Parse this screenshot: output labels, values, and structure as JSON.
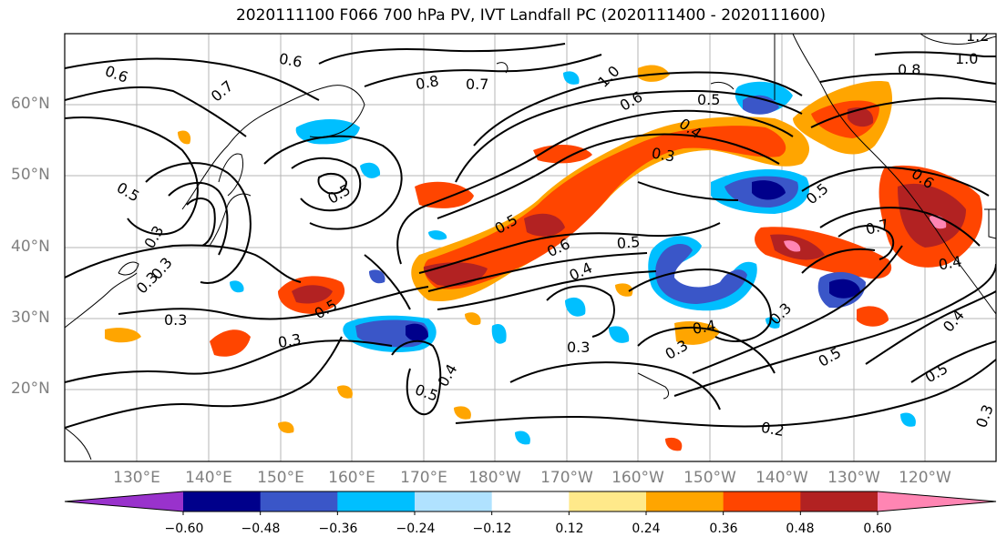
{
  "title": "2020111100 F066 700 hPa PV, IVT Landfall PC (2020111400 - 2020111600)",
  "lat_labels": [
    "60°N",
    "50°N",
    "40°N",
    "30°N",
    "20°N"
  ],
  "lon_labels": [
    "130°E",
    "140°E",
    "150°E",
    "160°E",
    "170°E",
    "180°W",
    "170°W",
    "160°W",
    "150°W",
    "140°W",
    "130°W",
    "120°W"
  ],
  "colorbar": {
    "colors": [
      "#9932cc",
      "#00008b",
      "#3a56c8",
      "#00bfff",
      "#b0e2ff",
      "#ffffff",
      "#ffe98a",
      "#ffa500",
      "#ff4500",
      "#b22222",
      "#ff85b3"
    ],
    "tick_labels": [
      "−0.60",
      "−0.48",
      "−0.36",
      "−0.24",
      "−0.12",
      "0.12",
      "0.24",
      "0.36",
      "0.48",
      "0.60"
    ]
  },
  "contour_labels": [
    "0.6",
    "0.6",
    "0.7",
    "0.8",
    "0.7",
    "1.0",
    "0.6",
    "0.5",
    "0.8",
    "1.0",
    "1.2",
    "0.4",
    "0.5",
    "0.5",
    "0.3",
    "0.5",
    "0.6",
    "0.5",
    "0.4",
    "0.3",
    "0.3",
    "0.5",
    "0.4",
    "0.3",
    "0.3",
    "0.4",
    "0.5",
    "0.5",
    "0.3",
    "0.7",
    "0.6",
    "0.4",
    "0.3",
    "0.5",
    "0.4",
    "0.2",
    "0.3",
    "0.3",
    "0.5",
    "0.3"
  ]
}
